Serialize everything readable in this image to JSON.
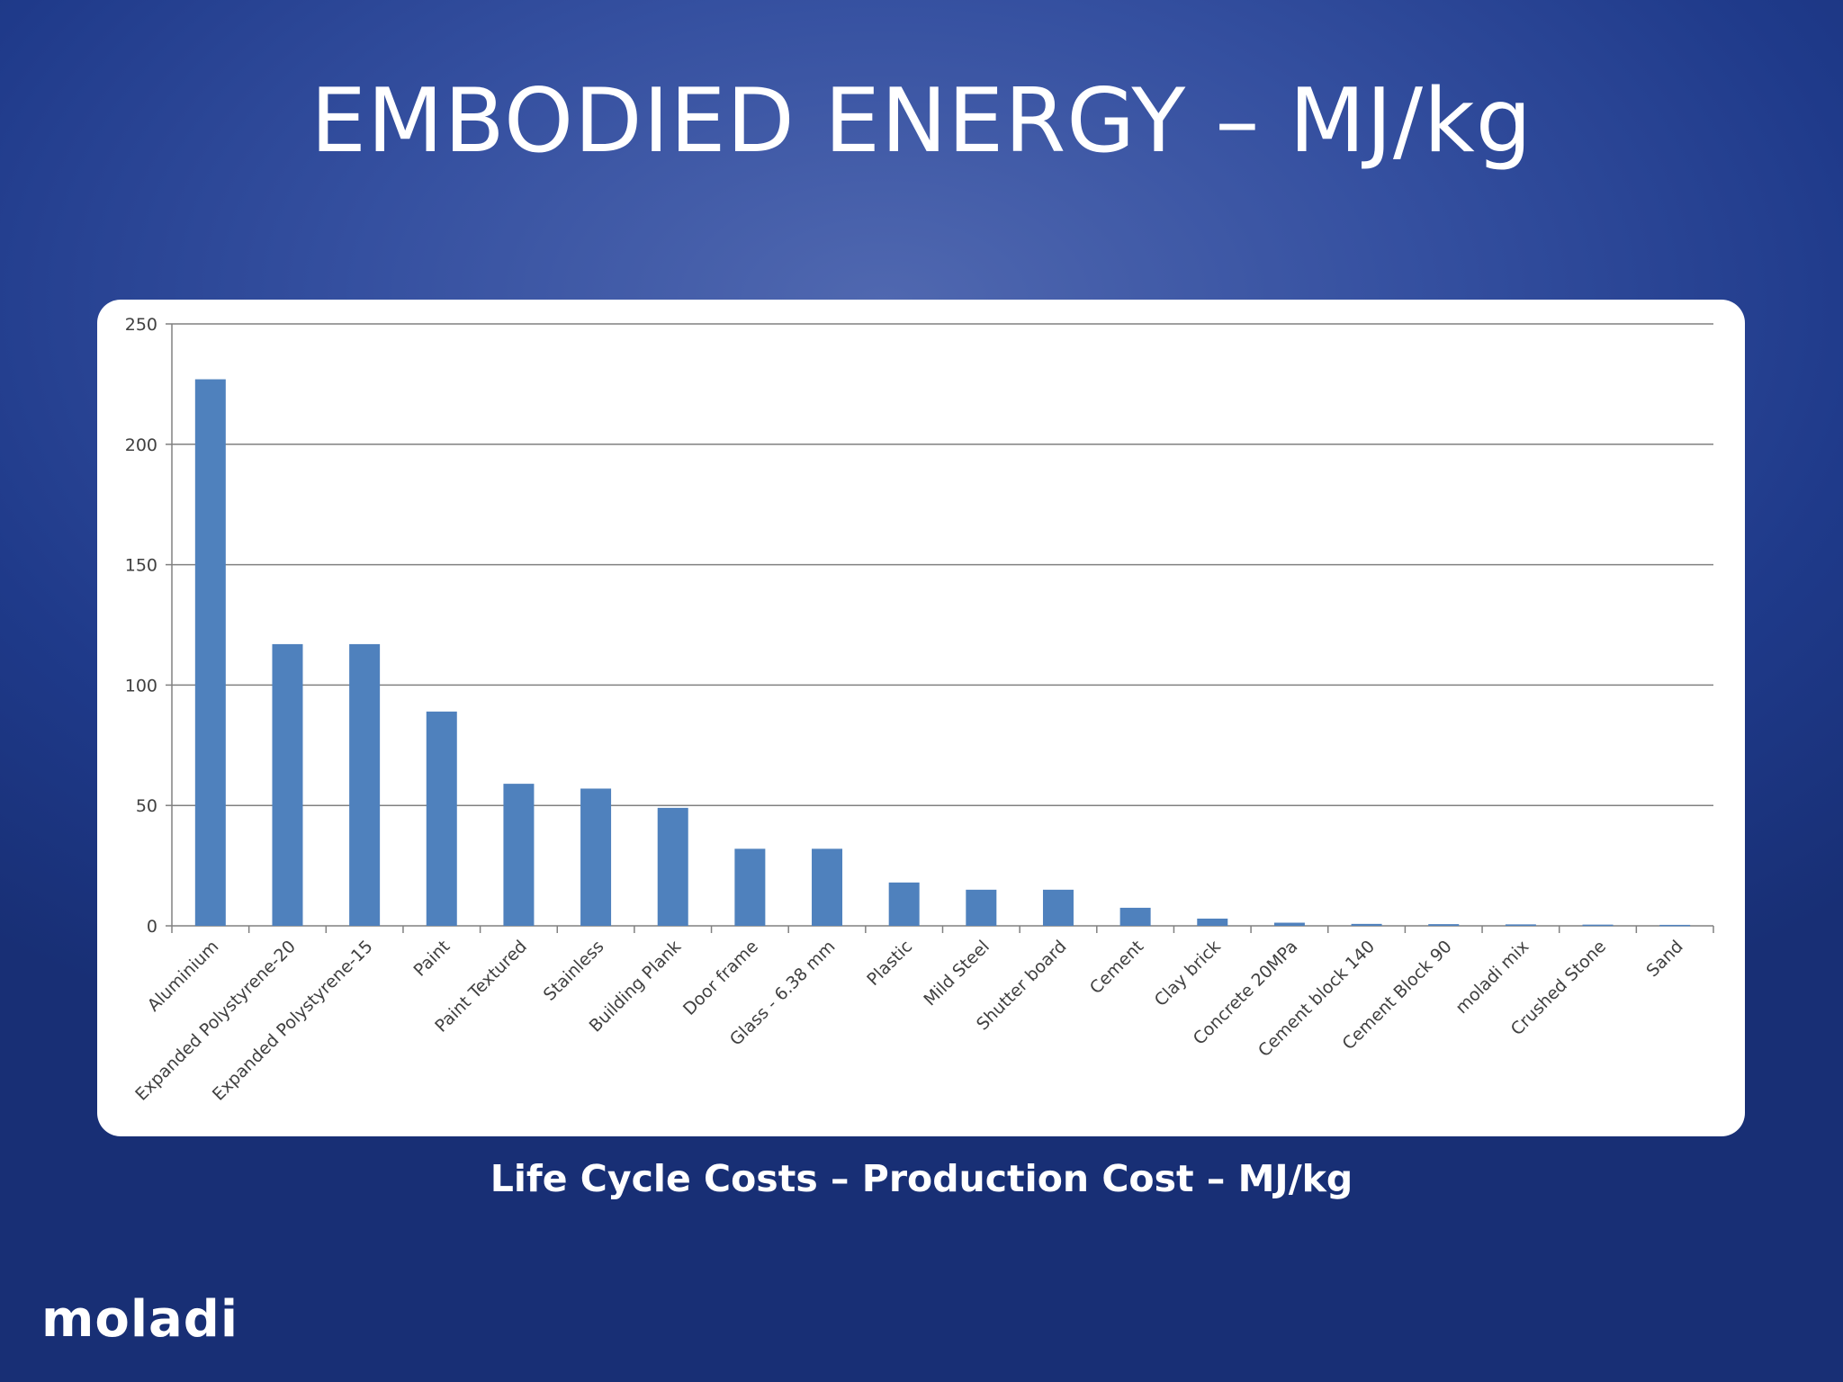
{
  "slide": {
    "title": "EMBODIED ENERGY – MJ/kg",
    "caption": "Life Cycle Costs – Production Cost – MJ/kg",
    "logo": "moladi"
  },
  "colors": {
    "background": "#2a4595",
    "bar": "#4f81bd",
    "gridline": "#808080",
    "text": "#ffffff"
  },
  "chart_data": {
    "type": "bar",
    "title": "",
    "xlabel": "",
    "ylabel": "",
    "ylim": [
      0,
      250
    ],
    "yticks": [
      0,
      50,
      100,
      150,
      200,
      250
    ],
    "grid": true,
    "legend": "none",
    "categories": [
      "Aluminium",
      "Expanded Polystyrene-20",
      "Expanded Polystyrene-15",
      "Paint",
      "Paint Textured",
      "Stainless",
      "Building Plank",
      "Door frame",
      "Glass - 6.38 mm",
      "Plastic",
      "Mild Steel",
      "Shutter board",
      "Cement",
      "Clay brick",
      "Concrete 20MPa",
      "Cement block 140",
      "Cement Block 90",
      "moladi mix",
      "Crushed Stone",
      "Sand"
    ],
    "values": [
      227,
      117,
      117,
      89,
      59,
      57,
      49,
      32,
      32,
      18,
      15,
      15,
      7.5,
      3,
      1.3,
      0.8,
      0.7,
      0.6,
      0.5,
      0.4
    ]
  }
}
